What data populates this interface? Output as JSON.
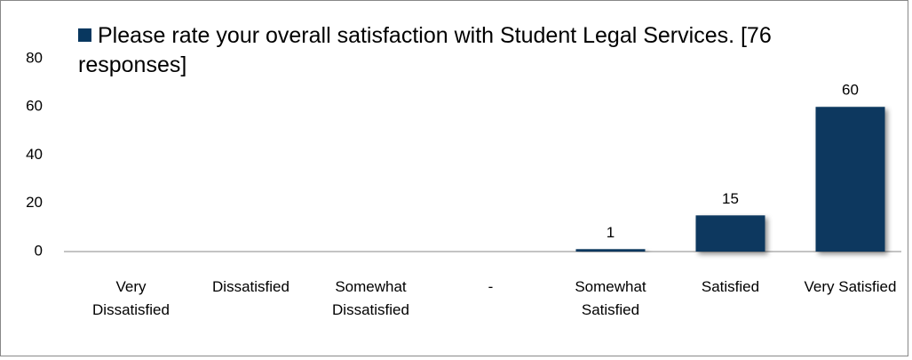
{
  "chart_data": {
    "type": "bar",
    "series": [
      {
        "name": "Please rate your overall satisfaction with Student Legal Services.  [76 responses]",
        "color": "#08375f",
        "values": [
          null,
          null,
          null,
          null,
          1,
          15,
          60
        ]
      }
    ],
    "categories": [
      "Very Dissatisfied",
      "Dissatisfied",
      "Somewhat Dissatisfied",
      "-",
      "Somewhat Satisfied",
      "Satisfied",
      "Very Satisfied"
    ],
    "ylim": [
      0,
      80
    ],
    "yticks": [
      0,
      20,
      40,
      60,
      80
    ],
    "grid": false,
    "legend": "top"
  }
}
